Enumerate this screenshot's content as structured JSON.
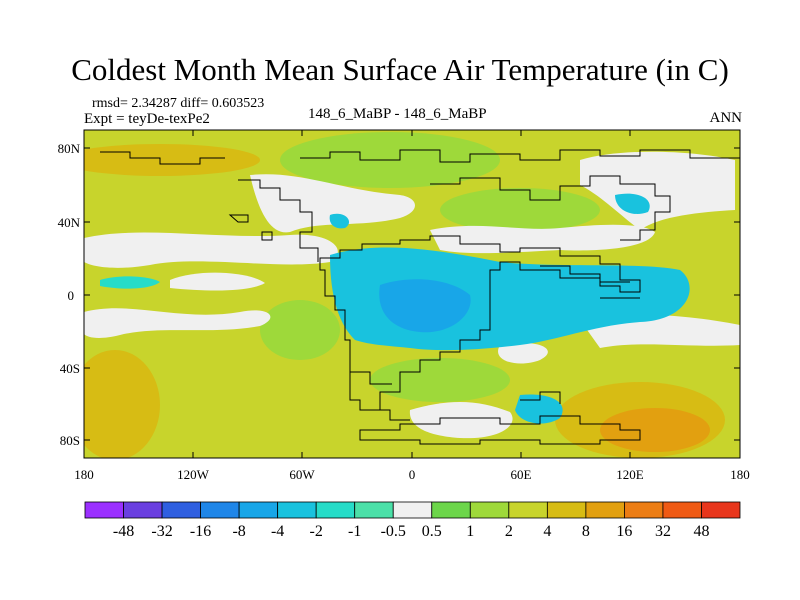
{
  "figure": {
    "title": "Coldest Month Mean Surface Air Temperature (in C)",
    "stats": "rmsd= 2.34287 diff= 0.603523",
    "experiment": "Expt = teyDe-texPe2",
    "comparison": "148_6_MaBP - 148_6_MaBP",
    "season": "ANN"
  },
  "map": {
    "lat_ticks": [
      "80N",
      "40N",
      "0",
      "40S",
      "80S"
    ],
    "lon_ticks": [
      "180",
      "120W",
      "60W",
      "0",
      "60E",
      "120E",
      "180"
    ]
  },
  "colorbar": {
    "labels": [
      "-48",
      "-32",
      "-16",
      "-8",
      "-4",
      "-2",
      "-1",
      "-0.5",
      "0.5",
      "1",
      "2",
      "4",
      "8",
      "16",
      "32",
      "48"
    ],
    "colors": [
      "#9b30ff",
      "#6a3fe0",
      "#2f5fe0",
      "#1f86e8",
      "#18a6e8",
      "#19c2de",
      "#26dcc8",
      "#4be0a8",
      "#f0f0f0",
      "#6cd64a",
      "#9ed93a",
      "#c8d42c",
      "#d7bc14",
      "#e2a010",
      "#ec7d14",
      "#ef5a14",
      "#e8361c"
    ]
  }
}
